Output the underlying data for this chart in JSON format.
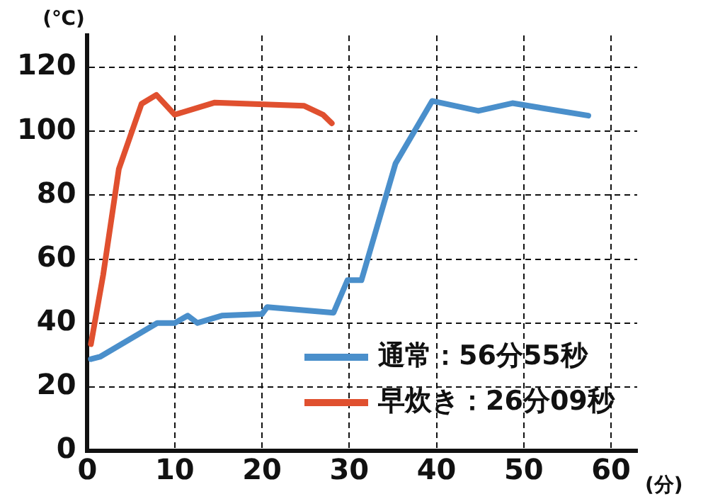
{
  "chart_data": {
    "type": "line",
    "xlabel": "(分)",
    "ylabel": "(℃)",
    "xlim": [
      0,
      63
    ],
    "xticks": [
      0,
      10,
      20,
      30,
      40,
      50,
      60
    ],
    "ylim": [
      0,
      130
    ],
    "yticks": [
      0,
      20,
      40,
      60,
      80,
      100,
      120
    ],
    "grid": true,
    "legend": "bottom right",
    "marker": "none",
    "line_style": "solid",
    "series": [
      {
        "name": "通常：56分55秒",
        "color": "#4a8fcb",
        "x": [
          0.4,
          1.5,
          8,
          10,
          11.5,
          12.6,
          15.4,
          20,
          20.6,
          28.2,
          29.8,
          31.4,
          35.3,
          39.5,
          44.8,
          48.7,
          57.4
        ],
        "values": [
          28.7,
          29.5,
          40,
          40,
          42.3,
          40,
          42.3,
          42.8,
          45,
          43.2,
          53.4,
          53.4,
          89.9,
          109.5,
          106.4,
          108.8,
          104.9
        ]
      },
      {
        "name": "早炊き：26分09秒",
        "color": "#e0502f",
        "x": [
          0.4,
          1.8,
          3.6,
          6.2,
          7.9,
          10,
          14.6,
          24.8,
          27,
          28
        ],
        "values": [
          33.4,
          55,
          88.2,
          108.6,
          111.4,
          105.2,
          109,
          108,
          105.2,
          102.5
        ]
      }
    ]
  }
}
